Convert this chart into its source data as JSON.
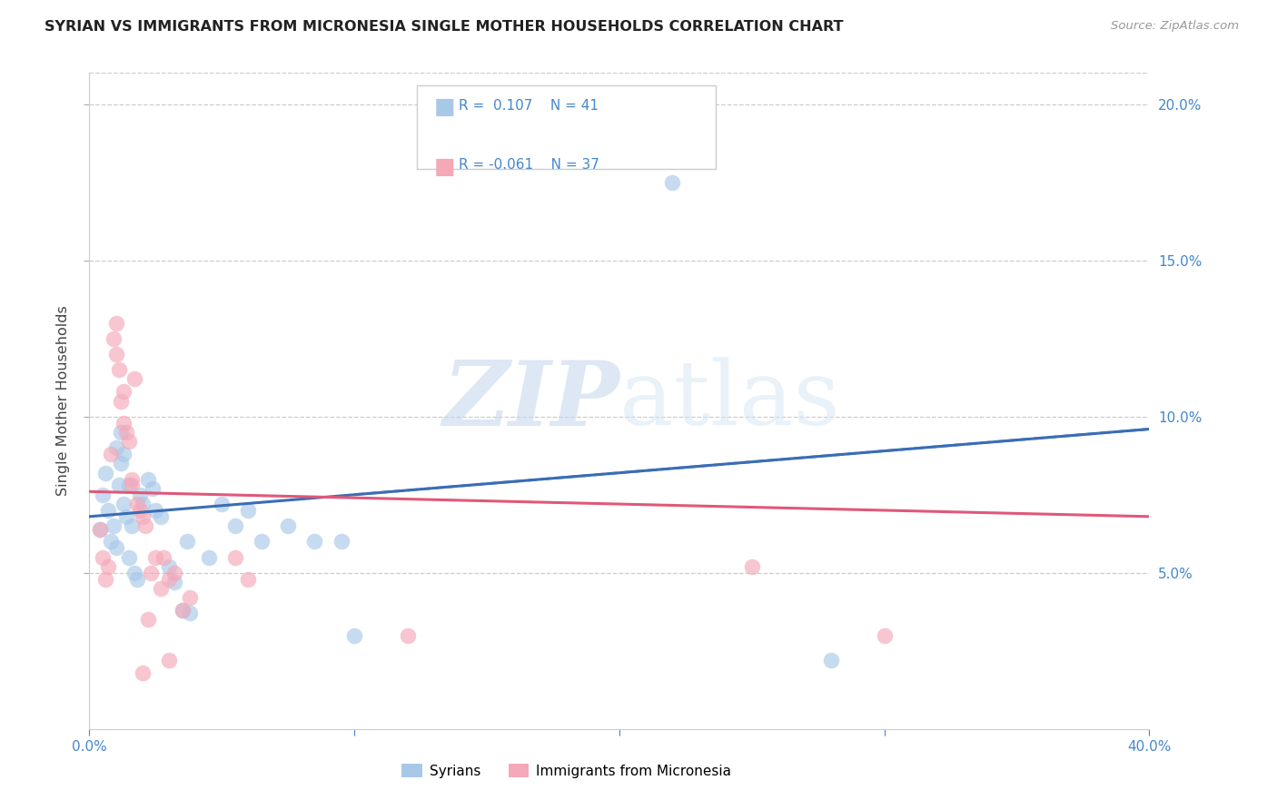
{
  "title": "SYRIAN VS IMMIGRANTS FROM MICRONESIA SINGLE MOTHER HOUSEHOLDS CORRELATION CHART",
  "source": "Source: ZipAtlas.com",
  "ylabel": "Single Mother Households",
  "xlim": [
    0,
    0.4
  ],
  "ylim": [
    0,
    0.21
  ],
  "yticks": [
    0.05,
    0.1,
    0.15,
    0.2
  ],
  "ytick_labels": [
    "5.0%",
    "10.0%",
    "15.0%",
    "20.0%"
  ],
  "xticks": [
    0.0,
    0.4
  ],
  "xtick_labels": [
    "0.0%",
    "40.0%"
  ],
  "legend_r_blue": "R =  0.107",
  "legend_n_blue": "N = 41",
  "legend_r_pink": "R = -0.061",
  "legend_n_pink": "N = 37",
  "legend_label_blue": "Syrians",
  "legend_label_pink": "Immigrants from Micronesia",
  "watermark_zip": "ZIP",
  "watermark_atlas": "atlas",
  "blue_color": "#a8c8e8",
  "pink_color": "#f4a8b8",
  "blue_line_color": "#3a6db5",
  "pink_line_color": "#e05878",
  "axis_color": "#4488cc",
  "blue_scatter": [
    [
      0.004,
      0.064
    ],
    [
      0.005,
      0.075
    ],
    [
      0.006,
      0.082
    ],
    [
      0.007,
      0.07
    ],
    [
      0.008,
      0.06
    ],
    [
      0.009,
      0.065
    ],
    [
      0.01,
      0.058
    ],
    [
      0.01,
      0.09
    ],
    [
      0.011,
      0.078
    ],
    [
      0.012,
      0.085
    ],
    [
      0.012,
      0.095
    ],
    [
      0.013,
      0.088
    ],
    [
      0.013,
      0.072
    ],
    [
      0.014,
      0.068
    ],
    [
      0.015,
      0.055
    ],
    [
      0.015,
      0.078
    ],
    [
      0.016,
      0.065
    ],
    [
      0.017,
      0.05
    ],
    [
      0.018,
      0.048
    ],
    [
      0.019,
      0.075
    ],
    [
      0.02,
      0.072
    ],
    [
      0.022,
      0.08
    ],
    [
      0.024,
      0.077
    ],
    [
      0.025,
      0.07
    ],
    [
      0.027,
      0.068
    ],
    [
      0.03,
      0.052
    ],
    [
      0.032,
      0.047
    ],
    [
      0.035,
      0.038
    ],
    [
      0.037,
      0.06
    ],
    [
      0.038,
      0.037
    ],
    [
      0.045,
      0.055
    ],
    [
      0.05,
      0.072
    ],
    [
      0.055,
      0.065
    ],
    [
      0.06,
      0.07
    ],
    [
      0.065,
      0.06
    ],
    [
      0.075,
      0.065
    ],
    [
      0.085,
      0.06
    ],
    [
      0.095,
      0.06
    ],
    [
      0.1,
      0.03
    ],
    [
      0.22,
      0.175
    ],
    [
      0.28,
      0.022
    ]
  ],
  "pink_scatter": [
    [
      0.004,
      0.064
    ],
    [
      0.005,
      0.055
    ],
    [
      0.006,
      0.048
    ],
    [
      0.007,
      0.052
    ],
    [
      0.008,
      0.088
    ],
    [
      0.009,
      0.125
    ],
    [
      0.01,
      0.13
    ],
    [
      0.01,
      0.12
    ],
    [
      0.011,
      0.115
    ],
    [
      0.012,
      0.105
    ],
    [
      0.013,
      0.108
    ],
    [
      0.013,
      0.098
    ],
    [
      0.014,
      0.095
    ],
    [
      0.015,
      0.092
    ],
    [
      0.016,
      0.08
    ],
    [
      0.016,
      0.078
    ],
    [
      0.017,
      0.112
    ],
    [
      0.018,
      0.072
    ],
    [
      0.019,
      0.07
    ],
    [
      0.02,
      0.068
    ],
    [
      0.021,
      0.065
    ],
    [
      0.022,
      0.035
    ],
    [
      0.023,
      0.05
    ],
    [
      0.025,
      0.055
    ],
    [
      0.027,
      0.045
    ],
    [
      0.028,
      0.055
    ],
    [
      0.03,
      0.048
    ],
    [
      0.032,
      0.05
    ],
    [
      0.035,
      0.038
    ],
    [
      0.038,
      0.042
    ],
    [
      0.055,
      0.055
    ],
    [
      0.06,
      0.048
    ],
    [
      0.12,
      0.03
    ],
    [
      0.25,
      0.052
    ],
    [
      0.3,
      0.03
    ],
    [
      0.03,
      0.022
    ],
    [
      0.02,
      0.018
    ]
  ],
  "blue_line": {
    "x0": 0.0,
    "y0": 0.068,
    "x1": 0.4,
    "y1": 0.096
  },
  "pink_line": {
    "x0": 0.0,
    "y0": 0.076,
    "x1": 0.4,
    "y1": 0.068
  },
  "blue_dashed_line": {
    "x0": 0.1,
    "y0": 0.075,
    "x1": 0.4,
    "y1": 0.096
  }
}
